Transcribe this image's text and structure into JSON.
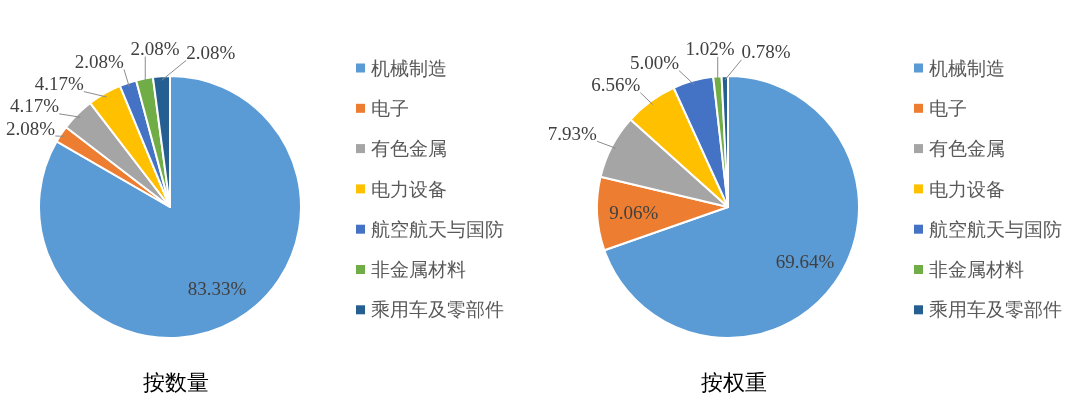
{
  "chart_data": [
    {
      "type": "pie",
      "title": "按数量",
      "categories": [
        "机械制造",
        "电子",
        "有色金属",
        "电力设备",
        "航空航天与国防",
        "非金属材料",
        "乘用车及零部件"
      ],
      "values": [
        83.33,
        2.08,
        4.17,
        4.17,
        2.08,
        2.08,
        2.08
      ],
      "colors": [
        "#5b9bd5",
        "#ed7d31",
        "#a5a5a5",
        "#ffc000",
        "#4472c4",
        "#70ad47",
        "#255e91"
      ],
      "value_labels": [
        "83.33%",
        "2.08%",
        "4.17%",
        "4.17%",
        "2.08%",
        "2.08%",
        "2.08%"
      ],
      "legend": "right"
    },
    {
      "type": "pie",
      "title": "按权重",
      "categories": [
        "机械制造",
        "电子",
        "有色金属",
        "电力设备",
        "航空航天与国防",
        "非金属材料",
        "乘用车及零部件"
      ],
      "values": [
        69.64,
        9.06,
        7.93,
        6.56,
        5.0,
        1.02,
        0.78
      ],
      "colors": [
        "#5b9bd5",
        "#ed7d31",
        "#a5a5a5",
        "#ffc000",
        "#4472c4",
        "#70ad47",
        "#255e91"
      ],
      "value_labels": [
        "69.64%",
        "9.06%",
        "7.93%",
        "6.56%",
        "5.00%",
        "1.02%",
        "0.78%"
      ],
      "legend": "right"
    }
  ]
}
